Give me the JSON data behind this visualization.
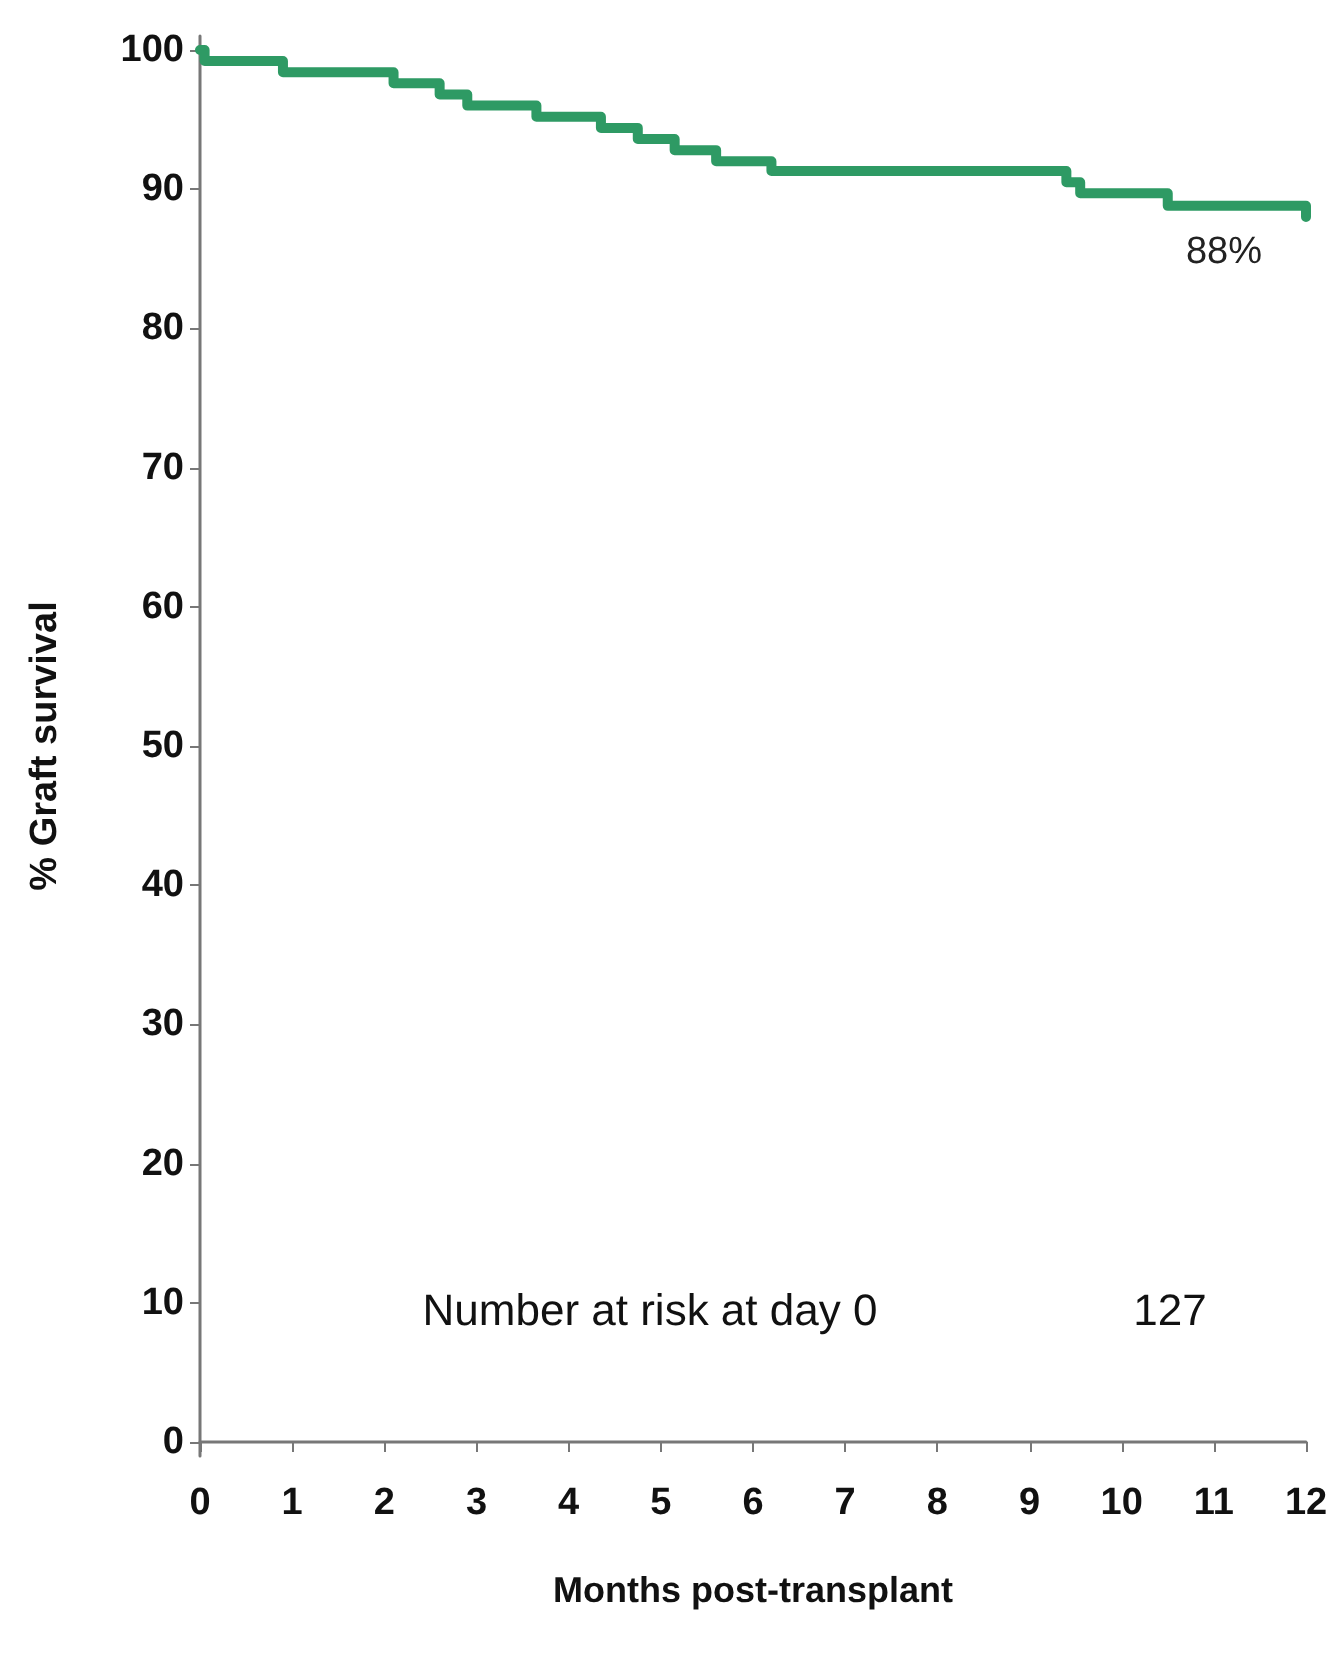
{
  "chart_data": {
    "type": "step",
    "xlabel": "Months post-transplant",
    "ylabel": "% Graft survival",
    "x": [
      0,
      0.05,
      0.9,
      2.1,
      2.6,
      2.9,
      3.65,
      4.35,
      4.75,
      5.15,
      5.6,
      6.2,
      9.4,
      9.55,
      10.5,
      12
    ],
    "series": [
      {
        "color": "#2e9a64",
        "values": [
          100,
          99.2,
          98.4,
          97.6,
          96.8,
          96.0,
          95.2,
          94.4,
          93.6,
          92.8,
          92.0,
          91.3,
          90.5,
          89.7,
          88.8,
          88
        ]
      }
    ],
    "xlim": [
      0,
      12
    ],
    "xticks": [
      0,
      1,
      2,
      3,
      4,
      5,
      6,
      7,
      8,
      9,
      10,
      11,
      12
    ],
    "ylim": [
      -1,
      101
    ],
    "yticks": [
      0,
      10,
      20,
      30,
      40,
      50,
      60,
      70,
      80,
      90,
      100
    ],
    "annotations": [
      {
        "text": "88%",
        "x": 12,
        "y": 88
      },
      "Number at risk at day 0",
      "127"
    ],
    "grid": false,
    "marker": "none",
    "line_style": "solid"
  }
}
